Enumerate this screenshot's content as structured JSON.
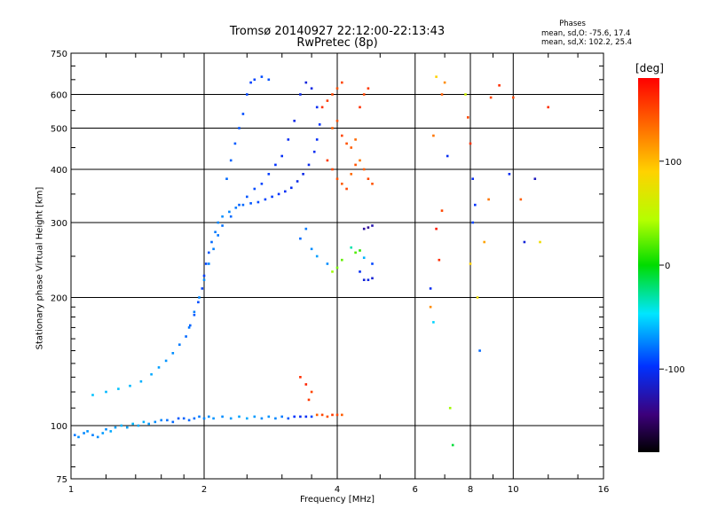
{
  "chart_data": {
    "type": "scatter",
    "title": "Tromsø 20140927 22:12:00-22:13:43",
    "subtitle": "RwPretec (8p)",
    "stats": {
      "header": "Phases",
      "line1": "mean, sd,O: -75.6, 17.4",
      "line2": "mean, sd,X: 102.2, 25.4"
    },
    "xlabel": "Frequency [MHz]",
    "ylabel": "Stationary phase Virtual Height [km]",
    "x_scale": "log",
    "y_scale": "log",
    "xlim": [
      1,
      16
    ],
    "ylim": [
      75,
      750
    ],
    "x_ticks": [
      1,
      2,
      4,
      6,
      8,
      10,
      16
    ],
    "x_tick_labels": [
      "1",
      "2",
      "4",
      "6",
      "8",
      "10",
      "16"
    ],
    "y_ticks": [
      75,
      100,
      200,
      300,
      400,
      500,
      600,
      750
    ],
    "y_tick_labels": [
      "75",
      "100",
      "200",
      "300",
      "400",
      "500",
      "600",
      "750"
    ],
    "grid": true,
    "colorbar": {
      "unit": "[deg]",
      "range": [
        -180,
        180
      ],
      "ticks": [
        100,
        0,
        -100
      ],
      "tick_labels": [
        "100",
        "0",
        "-100"
      ]
    },
    "series": [
      {
        "points": [
          [
            1.02,
            95,
            -75
          ],
          [
            1.04,
            94,
            -70
          ],
          [
            1.07,
            96,
            -72
          ],
          [
            1.09,
            97,
            -68
          ],
          [
            1.12,
            95,
            -74
          ],
          [
            1.15,
            94,
            -70
          ],
          [
            1.18,
            96,
            -66
          ],
          [
            1.2,
            98,
            -70
          ],
          [
            1.23,
            97,
            -62
          ],
          [
            1.26,
            99,
            -65
          ],
          [
            1.3,
            100,
            -60
          ],
          [
            1.34,
            99,
            -64
          ],
          [
            1.38,
            101,
            -58
          ],
          [
            1.42,
            100,
            -62
          ],
          [
            1.46,
            102,
            -60
          ],
          [
            1.5,
            101,
            -66
          ],
          [
            1.55,
            102,
            -70
          ],
          [
            1.6,
            103,
            -72
          ],
          [
            1.65,
            103,
            -78
          ],
          [
            1.7,
            102,
            -80
          ],
          [
            1.75,
            104,
            -85
          ],
          [
            1.8,
            104,
            -82
          ],
          [
            1.85,
            103,
            -80
          ],
          [
            1.9,
            104,
            -78
          ],
          [
            1.95,
            105,
            -75
          ],
          [
            2.0,
            104,
            -72
          ],
          [
            2.05,
            105,
            -70
          ],
          [
            2.1,
            104,
            -68
          ],
          [
            2.2,
            105,
            -70
          ],
          [
            2.3,
            104,
            -66
          ],
          [
            2.4,
            105,
            -64
          ],
          [
            2.5,
            104,
            -62
          ],
          [
            2.6,
            105,
            -66
          ],
          [
            2.7,
            104,
            -70
          ],
          [
            2.8,
            105,
            -68
          ],
          [
            2.9,
            104,
            -72
          ],
          [
            3.0,
            105,
            -75
          ],
          [
            3.1,
            104,
            -85
          ],
          [
            3.2,
            105,
            -95
          ],
          [
            3.3,
            105,
            -100
          ],
          [
            3.4,
            105,
            -98
          ],
          [
            3.5,
            105,
            -90
          ],
          [
            3.6,
            106,
            140
          ],
          [
            3.7,
            106,
            150
          ],
          [
            3.8,
            105,
            145
          ],
          [
            3.9,
            106,
            155
          ],
          [
            4.0,
            106,
            150
          ],
          [
            4.1,
            106,
            140
          ],
          [
            1.12,
            118,
            -55
          ],
          [
            1.2,
            120,
            -58
          ],
          [
            1.28,
            122,
            -55
          ],
          [
            1.36,
            124,
            -58
          ],
          [
            1.44,
            127,
            -60
          ],
          [
            1.52,
            132,
            -62
          ],
          [
            1.58,
            137,
            -65
          ],
          [
            1.64,
            142,
            -68
          ],
          [
            1.7,
            148,
            -70
          ],
          [
            1.76,
            155,
            -75
          ],
          [
            1.82,
            162,
            -80
          ],
          [
            1.86,
            172,
            -82
          ],
          [
            1.9,
            182,
            -85
          ],
          [
            1.94,
            195,
            -88
          ],
          [
            1.98,
            210,
            -90
          ],
          [
            2.0,
            225,
            -92
          ],
          [
            2.02,
            240,
            -90
          ],
          [
            2.05,
            255,
            -85
          ],
          [
            2.08,
            270,
            -80
          ],
          [
            2.12,
            285,
            -75
          ],
          [
            2.15,
            300,
            -72
          ],
          [
            2.2,
            310,
            -70
          ],
          [
            2.28,
            318,
            -72
          ],
          [
            2.36,
            325,
            -75
          ],
          [
            2.45,
            330,
            -80
          ],
          [
            2.55,
            333,
            -85
          ],
          [
            2.65,
            335,
            -88
          ],
          [
            2.75,
            340,
            -90
          ],
          [
            2.85,
            345,
            -92
          ],
          [
            2.95,
            350,
            -95
          ],
          [
            3.05,
            355,
            -98
          ],
          [
            3.15,
            362,
            -100
          ],
          [
            3.25,
            375,
            -102
          ],
          [
            3.35,
            390,
            -104
          ],
          [
            3.45,
            410,
            -102
          ],
          [
            3.55,
            440,
            -100
          ],
          [
            3.6,
            470,
            -98
          ],
          [
            3.65,
            510,
            -95
          ],
          [
            3.6,
            560,
            -100
          ],
          [
            3.5,
            620,
            -105
          ],
          [
            3.4,
            640,
            -108
          ],
          [
            3.3,
            600,
            -105
          ],
          [
            3.2,
            520,
            -103
          ],
          [
            3.1,
            470,
            -100
          ],
          [
            3.0,
            430,
            -98
          ],
          [
            2.9,
            410,
            -95
          ],
          [
            2.8,
            390,
            -92
          ],
          [
            2.7,
            370,
            -90
          ],
          [
            2.6,
            360,
            -88
          ],
          [
            2.5,
            345,
            -85
          ],
          [
            2.4,
            330,
            -82
          ],
          [
            2.3,
            310,
            -80
          ],
          [
            2.2,
            295,
            -78
          ],
          [
            2.15,
            280,
            -76
          ],
          [
            2.1,
            260,
            -74
          ],
          [
            2.05,
            240,
            -72
          ],
          [
            2.0,
            220,
            -70
          ],
          [
            1.95,
            200,
            -72
          ],
          [
            1.9,
            185,
            -74
          ],
          [
            1.85,
            170,
            -76
          ],
          [
            2.25,
            380,
            -80
          ],
          [
            2.3,
            420,
            -82
          ],
          [
            2.35,
            460,
            -84
          ],
          [
            2.4,
            500,
            -86
          ],
          [
            2.45,
            540,
            -88
          ],
          [
            2.5,
            600,
            -90
          ],
          [
            2.55,
            640,
            -92
          ],
          [
            2.6,
            650,
            -90
          ],
          [
            2.7,
            660,
            -88
          ],
          [
            2.8,
            650,
            -86
          ],
          [
            3.9,
            500,
            140
          ],
          [
            4.0,
            520,
            145
          ],
          [
            4.1,
            480,
            150
          ],
          [
            4.2,
            460,
            145
          ],
          [
            4.3,
            450,
            140
          ],
          [
            4.4,
            470,
            135
          ],
          [
            4.5,
            420,
            130
          ],
          [
            4.6,
            400,
            140
          ],
          [
            4.7,
            380,
            150
          ],
          [
            4.8,
            370,
            145
          ],
          [
            3.8,
            420,
            155
          ],
          [
            3.9,
            400,
            150
          ],
          [
            4.0,
            380,
            145
          ],
          [
            4.1,
            370,
            140
          ],
          [
            4.2,
            360,
            150
          ],
          [
            4.3,
            390,
            135
          ],
          [
            4.4,
            410,
            145
          ],
          [
            4.5,
            560,
            160
          ],
          [
            4.6,
            600,
            150
          ],
          [
            4.7,
            620,
            155
          ],
          [
            3.7,
            560,
            160
          ],
          [
            3.8,
            580,
            155
          ],
          [
            3.9,
            600,
            150
          ],
          [
            4.0,
            620,
            145
          ],
          [
            4.1,
            640,
            150
          ],
          [
            4.5,
            230,
            -100
          ],
          [
            4.6,
            220,
            -110
          ],
          [
            4.7,
            220,
            -105
          ],
          [
            4.8,
            222,
            -112
          ],
          [
            4.6,
            290,
            -130
          ],
          [
            4.7,
            292,
            -135
          ],
          [
            4.8,
            295,
            -125
          ],
          [
            4.4,
            255,
            20
          ],
          [
            4.5,
            258,
            10
          ],
          [
            4.3,
            262,
            -30
          ],
          [
            4.6,
            248,
            -60
          ],
          [
            4.8,
            240,
            -90
          ],
          [
            3.5,
            260,
            -70
          ],
          [
            3.6,
            250,
            -65
          ],
          [
            3.8,
            240,
            -70
          ],
          [
            3.9,
            230,
            40
          ],
          [
            4.0,
            235,
            30
          ],
          [
            4.1,
            245,
            25
          ],
          [
            3.3,
            275,
            -80
          ],
          [
            3.4,
            290,
            -75
          ],
          [
            3.3,
            130,
            160
          ],
          [
            3.4,
            125,
            165
          ],
          [
            3.5,
            120,
            150
          ],
          [
            3.45,
            115,
            155
          ],
          [
            6.5,
            210,
            -100
          ],
          [
            6.5,
            190,
            120
          ],
          [
            6.6,
            175,
            -50
          ],
          [
            6.8,
            245,
            160
          ],
          [
            6.7,
            290,
            170
          ],
          [
            6.9,
            320,
            150
          ],
          [
            6.6,
            480,
            130
          ],
          [
            6.9,
            600,
            140
          ],
          [
            7.0,
            640,
            120
          ],
          [
            6.7,
            660,
            90
          ],
          [
            7.1,
            430,
            -100
          ],
          [
            7.2,
            110,
            40
          ],
          [
            7.3,
            90,
            -10
          ],
          [
            7.8,
            600,
            60
          ],
          [
            7.9,
            530,
            150
          ],
          [
            8.0,
            460,
            160
          ],
          [
            8.1,
            380,
            -100
          ],
          [
            8.1,
            300,
            -90
          ],
          [
            8.2,
            330,
            -95
          ],
          [
            8.0,
            240,
            90
          ],
          [
            8.3,
            200,
            80
          ],
          [
            8.4,
            150,
            -80
          ],
          [
            8.6,
            270,
            110
          ],
          [
            8.8,
            340,
            130
          ],
          [
            8.9,
            590,
            150
          ],
          [
            9.3,
            630,
            160
          ],
          [
            9.8,
            390,
            -100
          ],
          [
            10.0,
            590,
            150
          ],
          [
            10.4,
            340,
            140
          ],
          [
            10.6,
            270,
            -110
          ],
          [
            11.2,
            380,
            -120
          ],
          [
            11.5,
            270,
            80
          ],
          [
            12.0,
            560,
            160
          ]
        ]
      }
    ]
  }
}
